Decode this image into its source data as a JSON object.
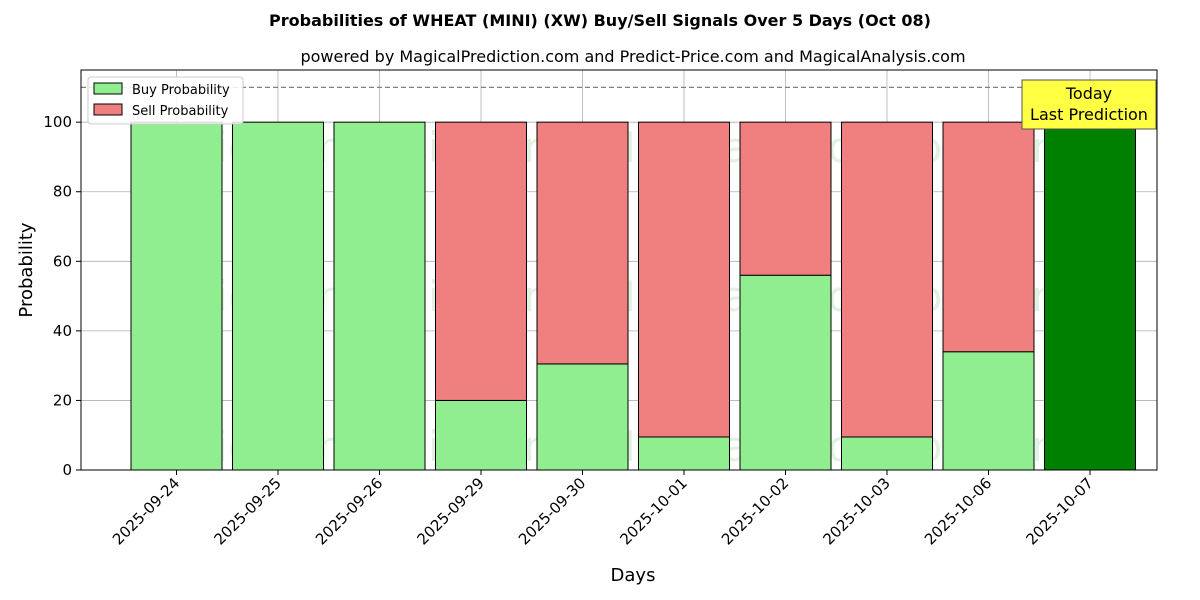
{
  "chart_data": {
    "type": "bar",
    "stacked": true,
    "title": "Probabilities of WHEAT (MINI) (XW) Buy/Sell Signals Over 5 Days (Oct 08)",
    "subtitle": "powered by MagicalPrediction.com and Predict-Price.com and MagicalAnalysis.com",
    "xlabel": "Days",
    "ylabel": "Probability",
    "ylim": [
      0,
      115
    ],
    "yticks": [
      0,
      20,
      40,
      60,
      80,
      100
    ],
    "grid": true,
    "legend_position": "top-left",
    "reference_line": {
      "value": 110,
      "style": "dashed"
    },
    "categories": [
      "2025-09-24",
      "2025-09-25",
      "2025-09-26",
      "2025-09-29",
      "2025-09-30",
      "2025-10-01",
      "2025-10-02",
      "2025-10-03",
      "2025-10-06",
      "2025-10-07"
    ],
    "series": [
      {
        "name": "Buy Probability",
        "color": "#90ee90",
        "values": [
          100,
          100,
          100,
          20,
          30.5,
          9.5,
          56,
          9.5,
          34,
          100
        ]
      },
      {
        "name": "Sell Probability",
        "color": "#f08080",
        "values": [
          0,
          0,
          0,
          80,
          69.5,
          90.5,
          44,
          90.5,
          66,
          0
        ]
      }
    ],
    "highlight": {
      "index": 9,
      "color": "#008000"
    },
    "annotation": {
      "lines": [
        "Today",
        "Last Prediction"
      ],
      "bg_color": "#ffff44"
    },
    "watermarks": [
      "MagicalAnalysis.com",
      "MagicalPrediction.com"
    ]
  }
}
